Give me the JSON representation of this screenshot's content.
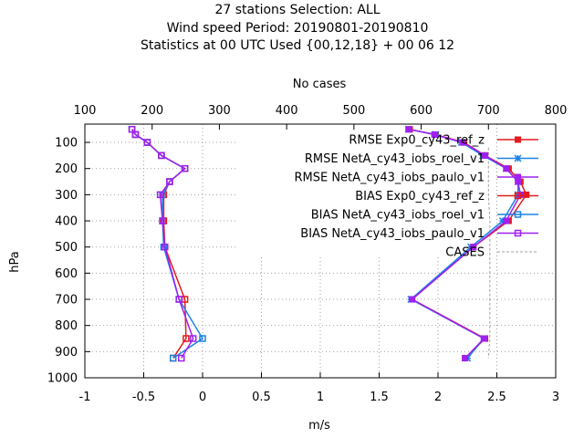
{
  "chart_data": {
    "type": "line",
    "title_lines": [
      "27 stations Selection: ALL",
      "Wind speed  Period: 20190801-20190810",
      "Statistics at 00 UTC  Used {00,12,18} + 00 06 12"
    ],
    "xlabel": "m/s",
    "ylabel": "hPa",
    "x2label": "No cases",
    "xlim": [
      -1,
      3
    ],
    "ylim": [
      1000,
      30
    ],
    "x2lim": [
      100,
      800
    ],
    "xticks": [
      -1,
      -0.5,
      0,
      0.5,
      1,
      1.5,
      2,
      2.5,
      3
    ],
    "xtick_labels": [
      "-1",
      "-0.5",
      "0",
      "0.5",
      "1",
      "1.5",
      "2",
      "2.5",
      "3"
    ],
    "yticks": [
      100,
      200,
      300,
      400,
      500,
      600,
      700,
      800,
      900,
      1000
    ],
    "ytick_labels": [
      "100",
      "200",
      "300",
      "400",
      "500",
      "600",
      "700",
      "800",
      "900",
      "1000"
    ],
    "x2ticks": [
      100,
      200,
      300,
      400,
      500,
      600,
      700,
      800
    ],
    "x2tick_labels": [
      "100",
      "200",
      "300",
      "400",
      "500",
      "600",
      "700",
      "800"
    ],
    "grid": true,
    "legend_position": "top-right",
    "levels": [
      50,
      70,
      100,
      150,
      200,
      250,
      300,
      400,
      500,
      700,
      850,
      925
    ],
    "series": [
      {
        "name": "RMSE Exp0_cy43_ref_z",
        "color": "#e41a1c",
        "marker": "filled-square",
        "axis": "x1",
        "y": [
          50,
          70,
          100,
          150,
          200,
          250,
          300,
          400,
          500,
          700,
          850,
          925
        ],
        "x": [
          1.76,
          1.98,
          2.22,
          2.4,
          2.6,
          2.7,
          2.75,
          2.6,
          2.3,
          1.78,
          2.4,
          2.23
        ]
      },
      {
        "name": "RMSE NetA_cy43_iobs_roel_v1",
        "color": "#1a82e4",
        "marker": "star",
        "axis": "x1",
        "y": [
          50,
          70,
          100,
          150,
          200,
          250,
          300,
          400,
          500,
          700,
          850,
          925
        ],
        "x": [
          1.75,
          1.98,
          2.2,
          2.38,
          2.58,
          2.68,
          2.68,
          2.55,
          2.28,
          1.77,
          2.39,
          2.25
        ]
      },
      {
        "name": "RMSE NetA_cy43_iobs_paulo_v1",
        "color": "#a020f0",
        "marker": "filled-square",
        "axis": "x1",
        "y": [
          50,
          70,
          100,
          150,
          200,
          250,
          300,
          400,
          500,
          700,
          850,
          925
        ],
        "x": [
          1.75,
          1.97,
          2.21,
          2.4,
          2.58,
          2.68,
          2.7,
          2.58,
          2.3,
          1.78,
          2.39,
          2.23
        ]
      },
      {
        "name": "BIAS Exp0_cy43_ref_z",
        "color": "#e41a1c",
        "marker": "open-square",
        "axis": "x1",
        "y": [
          50,
          70,
          100,
          150,
          200,
          250,
          300,
          400,
          500,
          700,
          850,
          925
        ],
        "x": [
          -0.6,
          -0.57,
          -0.47,
          -0.35,
          -0.15,
          -0.28,
          -0.33,
          -0.33,
          -0.32,
          -0.15,
          -0.14,
          -0.25
        ]
      },
      {
        "name": "BIAS NetA_cy43_iobs_roel_v1",
        "color": "#1a82e4",
        "marker": "open-square",
        "axis": "x1",
        "y": [
          50,
          70,
          100,
          150,
          200,
          250,
          300,
          400,
          500,
          700,
          850,
          925
        ],
        "x": [
          -0.6,
          -0.57,
          -0.47,
          -0.35,
          -0.15,
          -0.28,
          -0.34,
          -0.34,
          -0.33,
          -0.2,
          0.0,
          -0.25
        ]
      },
      {
        "name": "BIAS NetA_cy43_iobs_paulo_v1",
        "color": "#a020f0",
        "marker": "open-square",
        "axis": "x1",
        "y": [
          50,
          70,
          100,
          150,
          200,
          250,
          300,
          400,
          500,
          700,
          850,
          925
        ],
        "x": [
          -0.6,
          -0.57,
          -0.47,
          -0.35,
          -0.15,
          -0.28,
          -0.36,
          -0.34,
          -0.32,
          -0.2,
          -0.08,
          -0.18
        ]
      },
      {
        "name": "CASES",
        "color": "#a0a0a0",
        "marker": "none",
        "dashed": true,
        "axis": "x2",
        "y": [
          120,
          150,
          200,
          250,
          300,
          400,
          500,
          700,
          850,
          925
        ],
        "x": [
          700,
          700,
          700,
          700,
          700,
          702,
          702,
          702,
          702,
          700
        ]
      }
    ]
  }
}
